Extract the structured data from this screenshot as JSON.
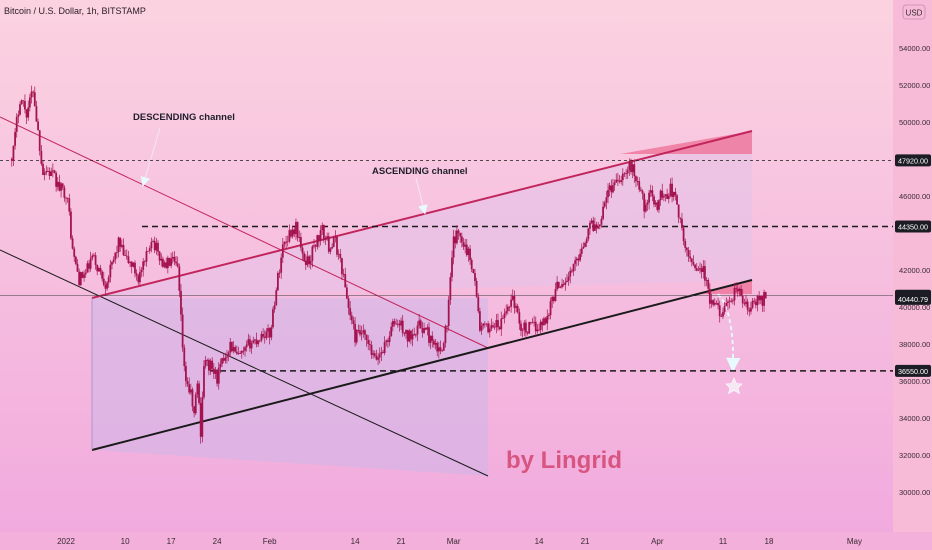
{
  "symbol": "Bitcoin / U.S. Dollar, 1h, BITSTAMP",
  "currency": "USD",
  "watermark": "by Lingrid",
  "colors": {
    "bg_top": "#fbd3e0",
    "bg_bottom": "#f1a9de",
    "candle": "#a4134f",
    "channel_line": "#c2245c",
    "support_line": "#1a1a1a",
    "label_bg": "#1c1c24",
    "watermark": "#d75580"
  },
  "chart_data": {
    "type": "candlestick",
    "ylim": [
      28500,
      55500
    ],
    "date_ticks": [
      {
        "label": "2022",
        "day": 0
      },
      {
        "label": "10",
        "day": 9
      },
      {
        "label": "17",
        "day": 16
      },
      {
        "label": "24",
        "day": 23
      },
      {
        "label": "Feb",
        "day": 31
      },
      {
        "label": "14",
        "day": 44
      },
      {
        "label": "21",
        "day": 51
      },
      {
        "label": "Mar",
        "day": 59
      },
      {
        "label": "14",
        "day": 72
      },
      {
        "label": "21",
        "day": 79
      },
      {
        "label": "Apr",
        "day": 90
      },
      {
        "label": "11",
        "day": 100
      },
      {
        "label": "18",
        "day": 107
      },
      {
        "label": "May",
        "day": 120
      }
    ],
    "price_ticks": [
      {
        "label": "54000.00",
        "value": 54000
      },
      {
        "label": "52000.00",
        "value": 52000
      },
      {
        "label": "50000.00",
        "value": 50000
      },
      {
        "label": "46000.00",
        "value": 46000
      },
      {
        "label": "42000.00",
        "value": 42000
      },
      {
        "label": "40000.00",
        "value": 40000
      },
      {
        "label": "38000.00",
        "value": 38000
      },
      {
        "label": "36000.00",
        "value": 36000
      },
      {
        "label": "34000.00",
        "value": 34000
      },
      {
        "label": "32000.00",
        "value": 32000
      },
      {
        "label": "30000.00",
        "value": 30000
      }
    ],
    "level_labels": [
      {
        "label": "47920.00",
        "value": 47920,
        "line": "dashed"
      },
      {
        "label": "44350.00",
        "value": 44350,
        "line": "dashed"
      },
      {
        "label": "40610.00",
        "value": 40610,
        "line": "thin"
      },
      {
        "label": "40440.79",
        "value": 40440.79,
        "line": "none"
      },
      {
        "label": "36550.00",
        "value": 36550,
        "line": "dashed"
      }
    ],
    "price_path": [
      [
        -8.5,
        48000
      ],
      [
        -8,
        48500
      ],
      [
        -7.5,
        50000
      ],
      [
        -7,
        51300
      ],
      [
        -6.5,
        51000
      ],
      [
        -6,
        50500
      ],
      [
        -5.5,
        51100
      ],
      [
        -5,
        51800
      ],
      [
        -4.5,
        50200
      ],
      [
        -4,
        48700
      ],
      [
        -3.5,
        47300
      ],
      [
        -3,
        47400
      ],
      [
        -2,
        47100
      ],
      [
        -1,
        46400
      ],
      [
        0,
        46200
      ],
      [
        0.5,
        45000
      ],
      [
        1,
        43000
      ],
      [
        2,
        41500
      ],
      [
        3,
        41800
      ],
      [
        4,
        42700
      ],
      [
        5,
        42000
      ],
      [
        6,
        41300
      ],
      [
        7,
        42200
      ],
      [
        8,
        43500
      ],
      [
        9,
        42600
      ],
      [
        10,
        42300
      ],
      [
        11,
        41600
      ],
      [
        12,
        42300
      ],
      [
        13,
        43800
      ],
      [
        14,
        42900
      ],
      [
        15,
        42200
      ],
      [
        16,
        42500
      ],
      [
        17,
        42000
      ],
      [
        18,
        36500
      ],
      [
        19,
        35200
      ],
      [
        19.5,
        34200
      ],
      [
        20,
        36000
      ],
      [
        20.5,
        33300
      ],
      [
        21,
        37000
      ],
      [
        22,
        36800
      ],
      [
        23,
        36200
      ],
      [
        24,
        37200
      ],
      [
        25,
        38000
      ],
      [
        26,
        37300
      ],
      [
        27,
        37400
      ],
      [
        28,
        38100
      ],
      [
        29,
        38200
      ],
      [
        30,
        38600
      ],
      [
        31,
        38500
      ],
      [
        32,
        41000
      ],
      [
        33,
        43300
      ],
      [
        34,
        44000
      ],
      [
        35,
        44300
      ],
      [
        35.5,
        43700
      ],
      [
        36,
        42600
      ],
      [
        37,
        42500
      ],
      [
        38,
        43500
      ],
      [
        39,
        44100
      ],
      [
        40,
        43300
      ],
      [
        41,
        43500
      ],
      [
        42,
        42100
      ],
      [
        43,
        40000
      ],
      [
        44,
        38400
      ],
      [
        45,
        38600
      ],
      [
        46,
        37900
      ],
      [
        47,
        37100
      ],
      [
        48,
        37600
      ],
      [
        49,
        38300
      ],
      [
        50,
        39200
      ],
      [
        51,
        39000
      ],
      [
        52,
        38300
      ],
      [
        53,
        38800
      ],
      [
        54,
        39000
      ],
      [
        55,
        38600
      ],
      [
        56,
        37800
      ],
      [
        57,
        37600
      ],
      [
        58,
        39100
      ],
      [
        59,
        43600
      ],
      [
        60,
        44000
      ],
      [
        61,
        43100
      ],
      [
        62,
        42100
      ],
      [
        63,
        38900
      ],
      [
        64,
        38800
      ],
      [
        65,
        39100
      ],
      [
        66,
        38900
      ],
      [
        67,
        39800
      ],
      [
        68,
        40600
      ],
      [
        69,
        39100
      ],
      [
        70,
        38800
      ],
      [
        71,
        38900
      ],
      [
        72,
        39000
      ],
      [
        73,
        39300
      ],
      [
        74,
        40400
      ],
      [
        75,
        41300
      ],
      [
        76,
        41400
      ],
      [
        77,
        41900
      ],
      [
        78,
        42800
      ],
      [
        79,
        43700
      ],
      [
        80,
        44500
      ],
      [
        81,
        44300
      ],
      [
        82,
        45900
      ],
      [
        83,
        46500
      ],
      [
        84,
        47000
      ],
      [
        85,
        47200
      ],
      [
        86,
        47600
      ],
      [
        87,
        46800
      ],
      [
        88,
        45500
      ],
      [
        89,
        46000
      ],
      [
        90,
        45500
      ],
      [
        90.5,
        46100
      ],
      [
        91,
        45900
      ],
      [
        92,
        46400
      ],
      [
        93,
        45600
      ],
      [
        94,
        43400
      ],
      [
        95,
        42600
      ],
      [
        96,
        42200
      ],
      [
        97,
        42000
      ],
      [
        98,
        40300
      ],
      [
        99,
        39900
      ],
      [
        100,
        39800
      ],
      [
        101,
        40000
      ],
      [
        102,
        41100
      ],
      [
        103,
        40300
      ],
      [
        104,
        39800
      ],
      [
        105,
        40300
      ],
      [
        106,
        40400
      ],
      [
        106.5,
        40700
      ]
    ],
    "annotations": [
      {
        "text": "DESCENDING channel"
      },
      {
        "text": "ASCENDING channel"
      }
    ]
  }
}
